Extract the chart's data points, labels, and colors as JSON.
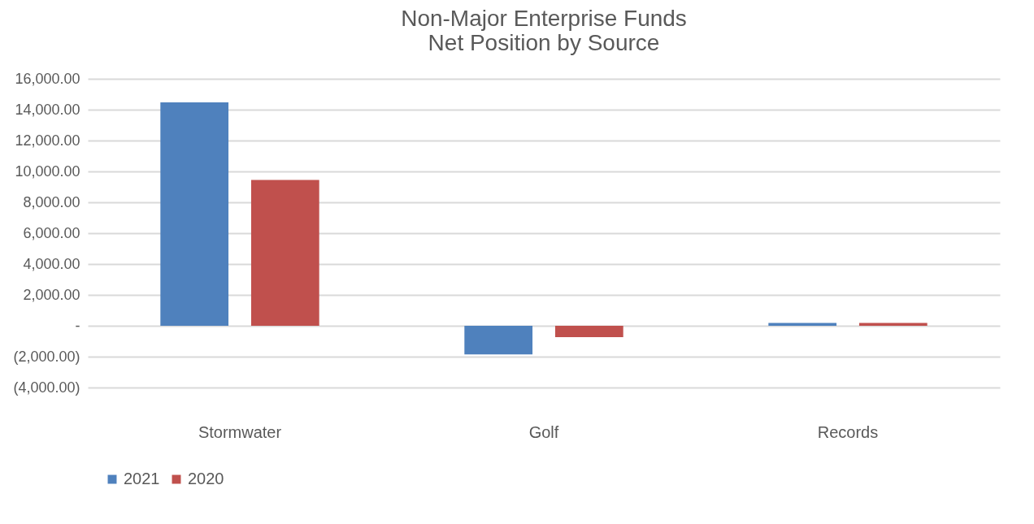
{
  "chart_data": {
    "type": "bar",
    "title": "Non-Major Enterprise Funds\nNet Position by Source",
    "categories": [
      "Stormwater",
      "Golf",
      "Records"
    ],
    "series": [
      {
        "name": "2021",
        "color": "#4f81bd",
        "values": [
          14480,
          -1860,
          190
        ]
      },
      {
        "name": "2020",
        "color": "#c0504d",
        "values": [
          9450,
          -740,
          190
        ]
      }
    ],
    "ylim": [
      -4000,
      16000
    ],
    "yticks": [
      {
        "value": -4000,
        "label": "(4,000.00)"
      },
      {
        "value": -2000,
        "label": "(2,000.00)"
      },
      {
        "value": 0,
        "label": "-"
      },
      {
        "value": 2000,
        "label": "2,000.00"
      },
      {
        "value": 4000,
        "label": "4,000.00"
      },
      {
        "value": 6000,
        "label": "6,000.00"
      },
      {
        "value": 8000,
        "label": "8,000.00"
      },
      {
        "value": 10000,
        "label": "10,000.00"
      },
      {
        "value": 12000,
        "label": "12,000.00"
      },
      {
        "value": 14000,
        "label": "14,000.00"
      },
      {
        "value": 16000,
        "label": "16,000.00"
      }
    ],
    "grid": "y",
    "legend": "bottom"
  }
}
